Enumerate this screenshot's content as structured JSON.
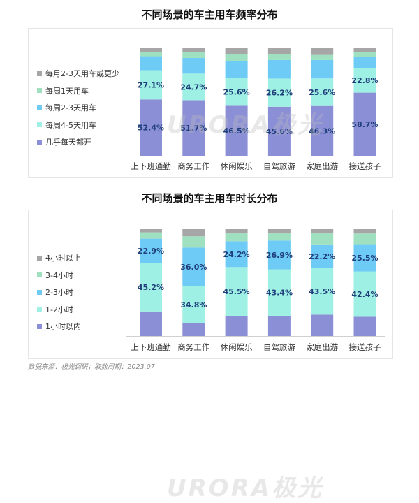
{
  "chart_data": [
    {
      "type": "bar",
      "stacked": true,
      "title": "不同场景的车主用车频率分布",
      "categories": [
        "上下班通勤",
        "商务工作",
        "休闲娱乐",
        "自驾旅游",
        "家庭出游",
        "接送孩子"
      ],
      "series": [
        {
          "name": "几乎每天都开",
          "values": [
            52.4,
            51.7,
            46.5,
            45.6,
            46.3,
            58.7
          ],
          "color": "#8b8fd6"
        },
        {
          "name": "每周4-5天用车",
          "values": [
            27.1,
            24.7,
            25.6,
            26.2,
            25.6,
            22.8
          ],
          "color": "#9ff0e4"
        },
        {
          "name": "每周2-3天用车",
          "values": [
            13.0,
            14.5,
            15.9,
            17.2,
            17.1,
            10.5
          ],
          "color": "#6ecbf5"
        },
        {
          "name": "每周1天用车",
          "values": [
            4.0,
            5.3,
            6.5,
            5.5,
            4.7,
            4.5
          ],
          "color": "#9ee0c0"
        },
        {
          "name": "每月2-3天用车或更少",
          "values": [
            3.5,
            3.8,
            5.5,
            5.5,
            6.3,
            3.5
          ],
          "color": "#a6a6a6"
        }
      ],
      "labels": [
        {
          "series": 0,
          "values": [
            "52.4%",
            "51.7%",
            "46.5%",
            "45.6%",
            "46.3%",
            "58.7%"
          ]
        },
        {
          "series": 1,
          "values": [
            "27.1%",
            "24.7%",
            "25.6%",
            "26.2%",
            "25.6%",
            "22.8%"
          ]
        }
      ],
      "ylim": [
        0,
        100
      ],
      "legend": "left"
    },
    {
      "type": "bar",
      "stacked": true,
      "title": "不同场景的车主用车时长分布",
      "categories": [
        "上下班通勤",
        "商务工作",
        "休闲娱乐",
        "自驾旅游",
        "家庭出游",
        "接送孩子"
      ],
      "series": [
        {
          "name": "1小时以内",
          "values": [
            23.0,
            12.0,
            19.0,
            19.0,
            20.0,
            18.0
          ],
          "color": "#8b8fd6"
        },
        {
          "name": "1-2小时",
          "values": [
            45.2,
            34.8,
            45.5,
            43.4,
            43.5,
            42.4
          ],
          "color": "#9ff0e4"
        },
        {
          "name": "2-3小时",
          "values": [
            22.9,
            36.0,
            24.2,
            26.9,
            22.2,
            25.5
          ],
          "color": "#6ecbf5"
        },
        {
          "name": "3-4小时",
          "values": [
            5.9,
            10.5,
            7.3,
            6.7,
            10.3,
            10.0
          ],
          "color": "#9ee0c0"
        },
        {
          "name": "4小时以上",
          "values": [
            3.0,
            6.7,
            4.0,
            4.0,
            4.0,
            4.1
          ],
          "color": "#a6a6a6"
        }
      ],
      "labels": [
        {
          "series": 1,
          "values": [
            "45.2%",
            "34.8%",
            "45.5%",
            "43.4%",
            "43.5%",
            "42.4%"
          ]
        },
        {
          "series": 2,
          "values": [
            "22.9%",
            "36.0%",
            "24.2%",
            "26.9%",
            "22.2%",
            "25.5%"
          ]
        }
      ],
      "ylim": [
        0,
        100
      ],
      "legend": "left"
    }
  ],
  "watermark": "URORA极光",
  "source": "数据来源：极光调研；取数周期：2023.07"
}
